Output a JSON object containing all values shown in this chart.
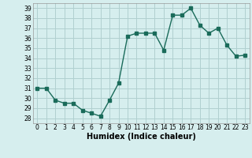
{
  "x": [
    0,
    1,
    2,
    3,
    4,
    5,
    6,
    7,
    8,
    9,
    10,
    11,
    12,
    13,
    14,
    15,
    16,
    17,
    18,
    19,
    20,
    21,
    22,
    23
  ],
  "y": [
    31,
    31,
    29.8,
    29.5,
    29.5,
    28.8,
    28.5,
    28.2,
    29.8,
    31.5,
    36.2,
    36.5,
    36.5,
    36.5,
    34.8,
    38.3,
    38.3,
    39.0,
    37.3,
    36.5,
    37.0,
    35.3,
    34.2,
    34.3
  ],
  "line_color": "#1a6b5a",
  "marker_color": "#1a6b5a",
  "bg_color": "#d6eeee",
  "grid_color": "#b0d0d0",
  "xlabel": "Humidex (Indice chaleur)",
  "ylim_min": 27.5,
  "ylim_max": 39.5,
  "xlim_min": -0.5,
  "xlim_max": 23.5,
  "yticks": [
    28,
    29,
    30,
    31,
    32,
    33,
    34,
    35,
    36,
    37,
    38,
    39
  ],
  "xticks": [
    0,
    1,
    2,
    3,
    4,
    5,
    6,
    7,
    8,
    9,
    10,
    11,
    12,
    13,
    14,
    15,
    16,
    17,
    18,
    19,
    20,
    21,
    22,
    23
  ],
  "tick_fontsize": 5.5,
  "xlabel_fontsize": 7,
  "linewidth": 1.0,
  "markersize": 2.5
}
